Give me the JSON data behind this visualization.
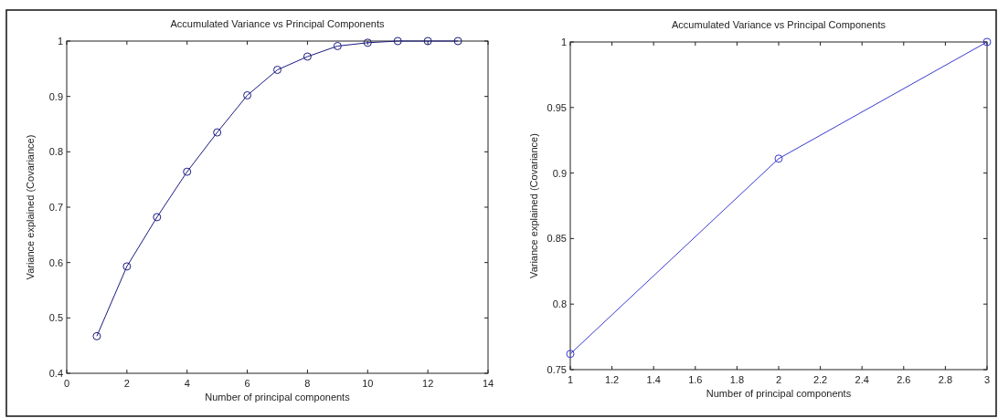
{
  "chart_data": [
    {
      "type": "line",
      "title": "Accumulated Variance vs Principal Components",
      "xlabel": "Number of principal components",
      "ylabel": "Variance explained (Covariance)",
      "x": [
        1,
        2,
        3,
        4,
        5,
        6,
        7,
        8,
        9,
        10,
        11,
        12,
        13
      ],
      "xlim": [
        0,
        14
      ],
      "xticks": [
        0,
        2,
        4,
        6,
        8,
        10,
        12,
        14
      ],
      "ylim": [
        0.4,
        1
      ],
      "yticks": [
        0.4,
        0.5,
        0.6,
        0.7,
        0.8,
        0.9,
        1
      ],
      "marker": "circle",
      "line_style": "solid",
      "grid": false,
      "series": [
        {
          "color": "#1a1a80",
          "values": [
            0.467,
            0.593,
            0.682,
            0.764,
            0.835,
            0.902,
            0.948,
            0.972,
            0.991,
            0.997,
            1,
            1,
            1
          ]
        }
      ]
    },
    {
      "type": "line",
      "title": "Accumulated Variance vs Principal Components",
      "xlabel": "Number of principal components",
      "ylabel": "Variance explained (Covariance)",
      "x": [
        1,
        2,
        3
      ],
      "xlim": [
        1,
        3
      ],
      "xticks": [
        1,
        1.2,
        1.4,
        1.6,
        1.8,
        2,
        2.2,
        2.4,
        2.6,
        2.8,
        3
      ],
      "ylim": [
        0.75,
        1
      ],
      "yticks": [
        0.75,
        0.8,
        0.85,
        0.9,
        0.95,
        1
      ],
      "marker": "circle",
      "line_style": "solid",
      "grid": false,
      "series": [
        {
          "color": "#3a3ad0",
          "values": [
            0.762,
            0.911,
            1
          ]
        }
      ]
    }
  ]
}
